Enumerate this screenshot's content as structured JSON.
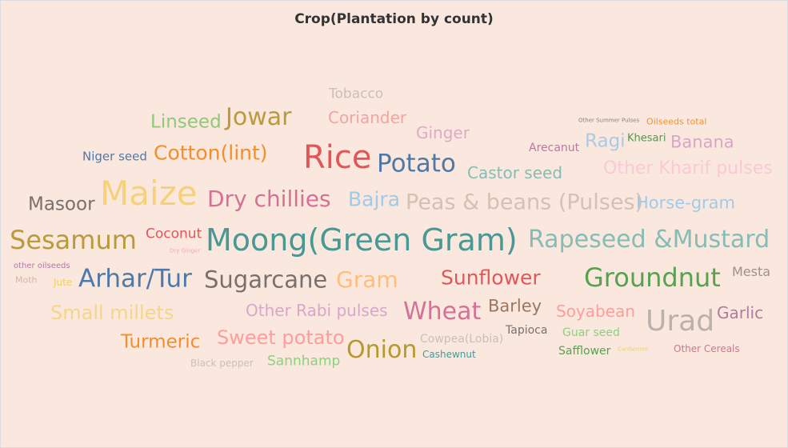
{
  "title": "Crop(Plantation by count)",
  "words": [
    {
      "text": "Tobacco",
      "color": "#c9bfb9"
    },
    {
      "text": "Linseed",
      "color": "#90c878"
    },
    {
      "text": "Jowar",
      "color": "#b99b3b"
    },
    {
      "text": "Coriander",
      "color": "#f2a4a0"
    },
    {
      "text": "Other Summer Pulses",
      "color": "#8b7f7a"
    },
    {
      "text": "Oilseeds total",
      "color": "#e9943a"
    },
    {
      "text": "Ginger",
      "color": "#e0a9c8"
    },
    {
      "text": "Ragi",
      "color": "#a9cbe4"
    },
    {
      "text": "Khesari",
      "color": "#4f9a4a"
    },
    {
      "text": "Banana",
      "color": "#d9a6c8"
    },
    {
      "text": "Arecanut",
      "color": "#b77a9e"
    },
    {
      "text": "Niger seed",
      "color": "#4e79a7"
    },
    {
      "text": "Cotton(lint)",
      "color": "#f28e2b"
    },
    {
      "text": "Rice",
      "color": "#e15759"
    },
    {
      "text": "Potato",
      "color": "#4e79a7"
    },
    {
      "text": "Castor seed",
      "color": "#86bcb6"
    },
    {
      "text": "Other Kharif pulses",
      "color": "#fbc9d6"
    },
    {
      "text": "Masoor",
      "color": "#79706e"
    },
    {
      "text": "Maize",
      "color": "#f5d27a"
    },
    {
      "text": "Dry chillies",
      "color": "#d37295"
    },
    {
      "text": "Bajra",
      "color": "#a0cbe8"
    },
    {
      "text": "Peas & beans (Pulses)",
      "color": "#d4c0b5"
    },
    {
      "text": "Horse-gram",
      "color": "#a0cbe8"
    },
    {
      "text": "Sesamum",
      "color": "#b99b3b"
    },
    {
      "text": "Coconut",
      "color": "#e15759"
    },
    {
      "text": "Dry Ginger",
      "color": "#f1a9b6"
    },
    {
      "text": "Moong(Green Gram)",
      "color": "#499894"
    },
    {
      "text": "Rapeseed &Mustard",
      "color": "#86bcb6"
    },
    {
      "text": "other oilseeds",
      "color": "#b07aa1"
    },
    {
      "text": "Moth",
      "color": "#d7b5a6"
    },
    {
      "text": "Jute",
      "color": "#f1ce63"
    },
    {
      "text": "Arhar/Tur",
      "color": "#4e79a7"
    },
    {
      "text": "Sugarcane",
      "color": "#79706e"
    },
    {
      "text": "Gram",
      "color": "#ffbe7d"
    },
    {
      "text": "Sunflower",
      "color": "#e15759"
    },
    {
      "text": "Groundnut",
      "color": "#59a14f"
    },
    {
      "text": "Mesta",
      "color": "#9d918b"
    },
    {
      "text": "Small millets",
      "color": "#f5d587"
    },
    {
      "text": "Other Rabi pulses",
      "color": "#d9a6c9"
    },
    {
      "text": "Wheat",
      "color": "#d37295"
    },
    {
      "text": "Barley",
      "color": "#9d7660"
    },
    {
      "text": "Soyabean",
      "color": "#ff9d9a"
    },
    {
      "text": "Urad",
      "color": "#bab0ac"
    },
    {
      "text": "Garlic",
      "color": "#b07aa1"
    },
    {
      "text": "Turmeric",
      "color": "#f28e2b"
    },
    {
      "text": "Sweet potato",
      "color": "#ff9d9a"
    },
    {
      "text": "Cowpea(Lobia)",
      "color": "#c9bfb9"
    },
    {
      "text": "Tapioca",
      "color": "#79706e"
    },
    {
      "text": "Guar seed",
      "color": "#8cd17d"
    },
    {
      "text": "Onion",
      "color": "#b6992d"
    },
    {
      "text": "Cashewnut",
      "color": "#499894"
    },
    {
      "text": "Safflower",
      "color": "#59a14f"
    },
    {
      "text": "Cardamom",
      "color": "#f1ce63"
    },
    {
      "text": "Other Cereals",
      "color": "#d37295"
    },
    {
      "text": "Black pepper",
      "color": "#c9bfb9"
    },
    {
      "text": "Sannhamp",
      "color": "#8cd17d"
    }
  ]
}
